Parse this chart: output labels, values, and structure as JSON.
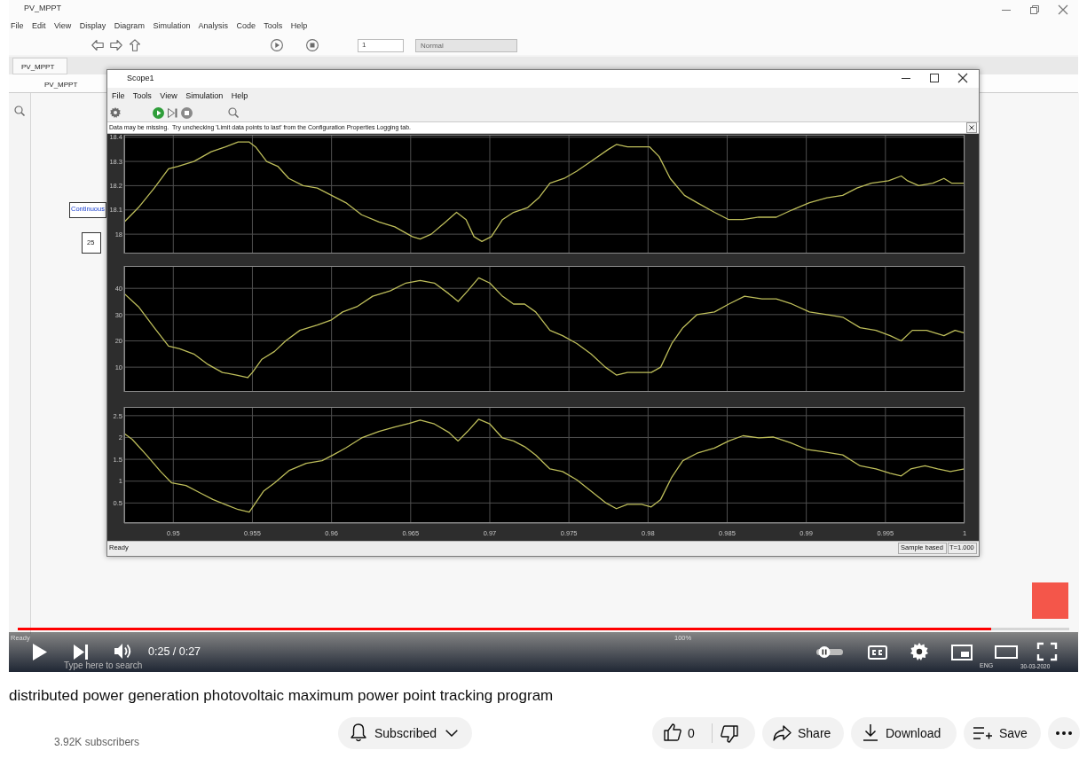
{
  "chart_data": [
    {
      "type": "line",
      "x": [
        0.9469,
        0.9478,
        0.9488,
        0.9497,
        0.9503,
        0.9513,
        0.9524,
        0.9533,
        0.9541,
        0.9548,
        0.9552,
        0.9559,
        0.9566,
        0.9573,
        0.9582,
        0.9591,
        0.96,
        0.9609,
        0.9619,
        0.963,
        0.964,
        0.9651,
        0.9656,
        0.9663,
        0.9672,
        0.9679,
        0.9685,
        0.969,
        0.9695,
        0.9701,
        0.9708,
        0.9715,
        0.9724,
        0.9731,
        0.9738,
        0.9747,
        0.9755,
        0.9764,
        0.9775,
        0.978,
        0.9787,
        0.9794,
        0.9801,
        0.9807,
        0.9814,
        0.9823,
        0.9831,
        0.9842,
        0.9851,
        0.986,
        0.987,
        0.9881,
        0.9891,
        0.9902,
        0.9913,
        0.9923,
        0.9932,
        0.9941,
        0.9952,
        0.996,
        0.9964,
        0.9971,
        0.998,
        0.9987,
        0.9992,
        1
      ],
      "values": [
        18.05,
        18.11,
        18.19,
        18.27,
        18.28,
        18.3,
        18.34,
        18.36,
        18.38,
        18.38,
        18.36,
        18.3,
        18.28,
        18.23,
        18.2,
        18.19,
        18.16,
        18.13,
        18.08,
        18.05,
        18.03,
        17.99,
        17.98,
        18.0,
        18.05,
        18.09,
        18.06,
        17.99,
        17.97,
        17.99,
        18.06,
        18.09,
        18.11,
        18.15,
        18.21,
        18.23,
        18.26,
        18.3,
        18.35,
        18.37,
        18.36,
        18.36,
        18.36,
        18.32,
        18.23,
        18.16,
        18.13,
        18.09,
        18.06,
        18.06,
        18.07,
        18.07,
        18.1,
        18.13,
        18.15,
        18.16,
        18.19,
        18.21,
        18.22,
        18.24,
        18.22,
        18.2,
        18.21,
        18.23,
        18.21,
        18.21
      ],
      "color": "#bdbd5a",
      "xlim": [
        0.9469,
        1
      ],
      "xticks": [
        0.95,
        0.955,
        0.96,
        0.965,
        0.97,
        0.975,
        0.98,
        0.985,
        0.99,
        0.995,
        1
      ],
      "ylim": [
        17.92,
        18.41
      ],
      "yticks": [
        18,
        18.1,
        18.2,
        18.3,
        18.4
      ],
      "grid": true,
      "tick_labels": "y",
      "annotations": [
        "PV_MPPT",
        "File Edit View Display Diagram Simulation Analysis Code Tools Help",
        "Normal",
        "PV_MPPT",
        "PV_MPPT",
        "Continuous",
        "25",
        "Scope1",
        "File Tools View Simulation Help",
        "Data may be missing.  Try unchecking 'Limit data points to last' from the Configuration Properties Logging tab.",
        "Ready",
        "Sample based",
        "T=1.000",
        "Ready",
        "100%",
        "0:25 / 0:27",
        "distributed power generation photovoltaic maximum power point tracking program",
        "3.92K subscribers",
        "Subscribed",
        "0",
        "Share",
        "Download",
        "Save",
        "1",
        "Type here to search",
        "ENG",
        "30-03-2020"
      ]
    },
    {
      "type": "line",
      "x": [
        0.9469,
        0.9478,
        0.9488,
        0.9497,
        0.9504,
        0.9513,
        0.9522,
        0.9531,
        0.954,
        0.9547,
        0.955,
        0.9556,
        0.9564,
        0.9571,
        0.958,
        0.9591,
        0.96,
        0.9607,
        0.9616,
        0.9626,
        0.9637,
        0.9647,
        0.9656,
        0.9665,
        0.9674,
        0.968,
        0.9686,
        0.9693,
        0.97,
        0.9708,
        0.9715,
        0.9722,
        0.9729,
        0.9738,
        0.9746,
        0.9755,
        0.9764,
        0.9773,
        0.978,
        0.9787,
        0.9796,
        0.9802,
        0.9808,
        0.9815,
        0.9822,
        0.9831,
        0.9842,
        0.9851,
        0.9861,
        0.9872,
        0.9881,
        0.9891,
        0.9902,
        0.9913,
        0.9923,
        0.9934,
        0.9944,
        0.9953,
        0.996,
        0.9967,
        0.9976,
        0.9987,
        0.9994,
        1
      ],
      "values": [
        38,
        33,
        25,
        18,
        17,
        15,
        11,
        8,
        7,
        6,
        8,
        13,
        16,
        20,
        24,
        26,
        28,
        31,
        33,
        37,
        39,
        42,
        43,
        42,
        38,
        35,
        39,
        44,
        42,
        37,
        34,
        34,
        31,
        24,
        22,
        19,
        15,
        10,
        7,
        8,
        8,
        8,
        10,
        19,
        25,
        30,
        31,
        34,
        37,
        36,
        36,
        34,
        31,
        30,
        29,
        25,
        24,
        22,
        20,
        24,
        24,
        22,
        24,
        23
      ],
      "color": "#bdbd5a",
      "xlim": [
        0.9469,
        1
      ],
      "xticks": [
        0.95,
        0.955,
        0.96,
        0.965,
        0.97,
        0.975,
        0.98,
        0.985,
        0.99,
        0.995,
        1
      ],
      "ylim": [
        0.6,
        48.5
      ],
      "yticks": [
        10,
        20,
        30,
        40
      ],
      "grid": true,
      "tick_labels": "y"
    },
    {
      "type": "line",
      "x": [
        0.9469,
        0.9474,
        0.9483,
        0.9492,
        0.9499,
        0.9508,
        0.9517,
        0.9525,
        0.9534,
        0.9541,
        0.9548,
        0.9551,
        0.9557,
        0.9564,
        0.9573,
        0.9584,
        0.9594,
        0.9601,
        0.9609,
        0.9619,
        0.963,
        0.964,
        0.9649,
        0.9656,
        0.9665,
        0.9674,
        0.968,
        0.9686,
        0.9693,
        0.97,
        0.9708,
        0.9715,
        0.9722,
        0.9729,
        0.9738,
        0.9746,
        0.9755,
        0.9764,
        0.9773,
        0.978,
        0.9787,
        0.9796,
        0.9802,
        0.9808,
        0.9815,
        0.9822,
        0.9831,
        0.9842,
        0.9851,
        0.986,
        0.987,
        0.9879,
        0.989,
        0.99,
        0.9911,
        0.9923,
        0.9934,
        0.9944,
        0.9953,
        0.996,
        0.9966,
        0.9975,
        0.9983,
        0.9991,
        1
      ],
      "values": [
        2.09,
        1.96,
        1.6,
        1.22,
        0.96,
        0.9,
        0.73,
        0.58,
        0.45,
        0.35,
        0.29,
        0.45,
        0.77,
        0.96,
        1.24,
        1.41,
        1.47,
        1.6,
        1.76,
        1.99,
        2.14,
        2.24,
        2.32,
        2.4,
        2.31,
        2.12,
        1.92,
        2.14,
        2.42,
        2.31,
        1.99,
        1.92,
        1.79,
        1.6,
        1.28,
        1.22,
        1.03,
        0.77,
        0.51,
        0.37,
        0.47,
        0.47,
        0.41,
        0.58,
        1.09,
        1.47,
        1.64,
        1.76,
        1.92,
        2.04,
        1.99,
        2.01,
        1.88,
        1.73,
        1.67,
        1.6,
        1.35,
        1.28,
        1.18,
        1.12,
        1.28,
        1.35,
        1.28,
        1.22,
        1.28
      ],
      "color": "#bdbd5a",
      "xlim": [
        0.9469,
        1
      ],
      "xticks": [
        0.95,
        0.955,
        0.96,
        0.965,
        0.97,
        0.975,
        0.98,
        0.985,
        0.99,
        0.995,
        1
      ],
      "ylim": [
        0.04,
        2.7
      ],
      "yticks": [
        0.5,
        1,
        1.5,
        2,
        2.5
      ],
      "grid": true
    }
  ]
}
